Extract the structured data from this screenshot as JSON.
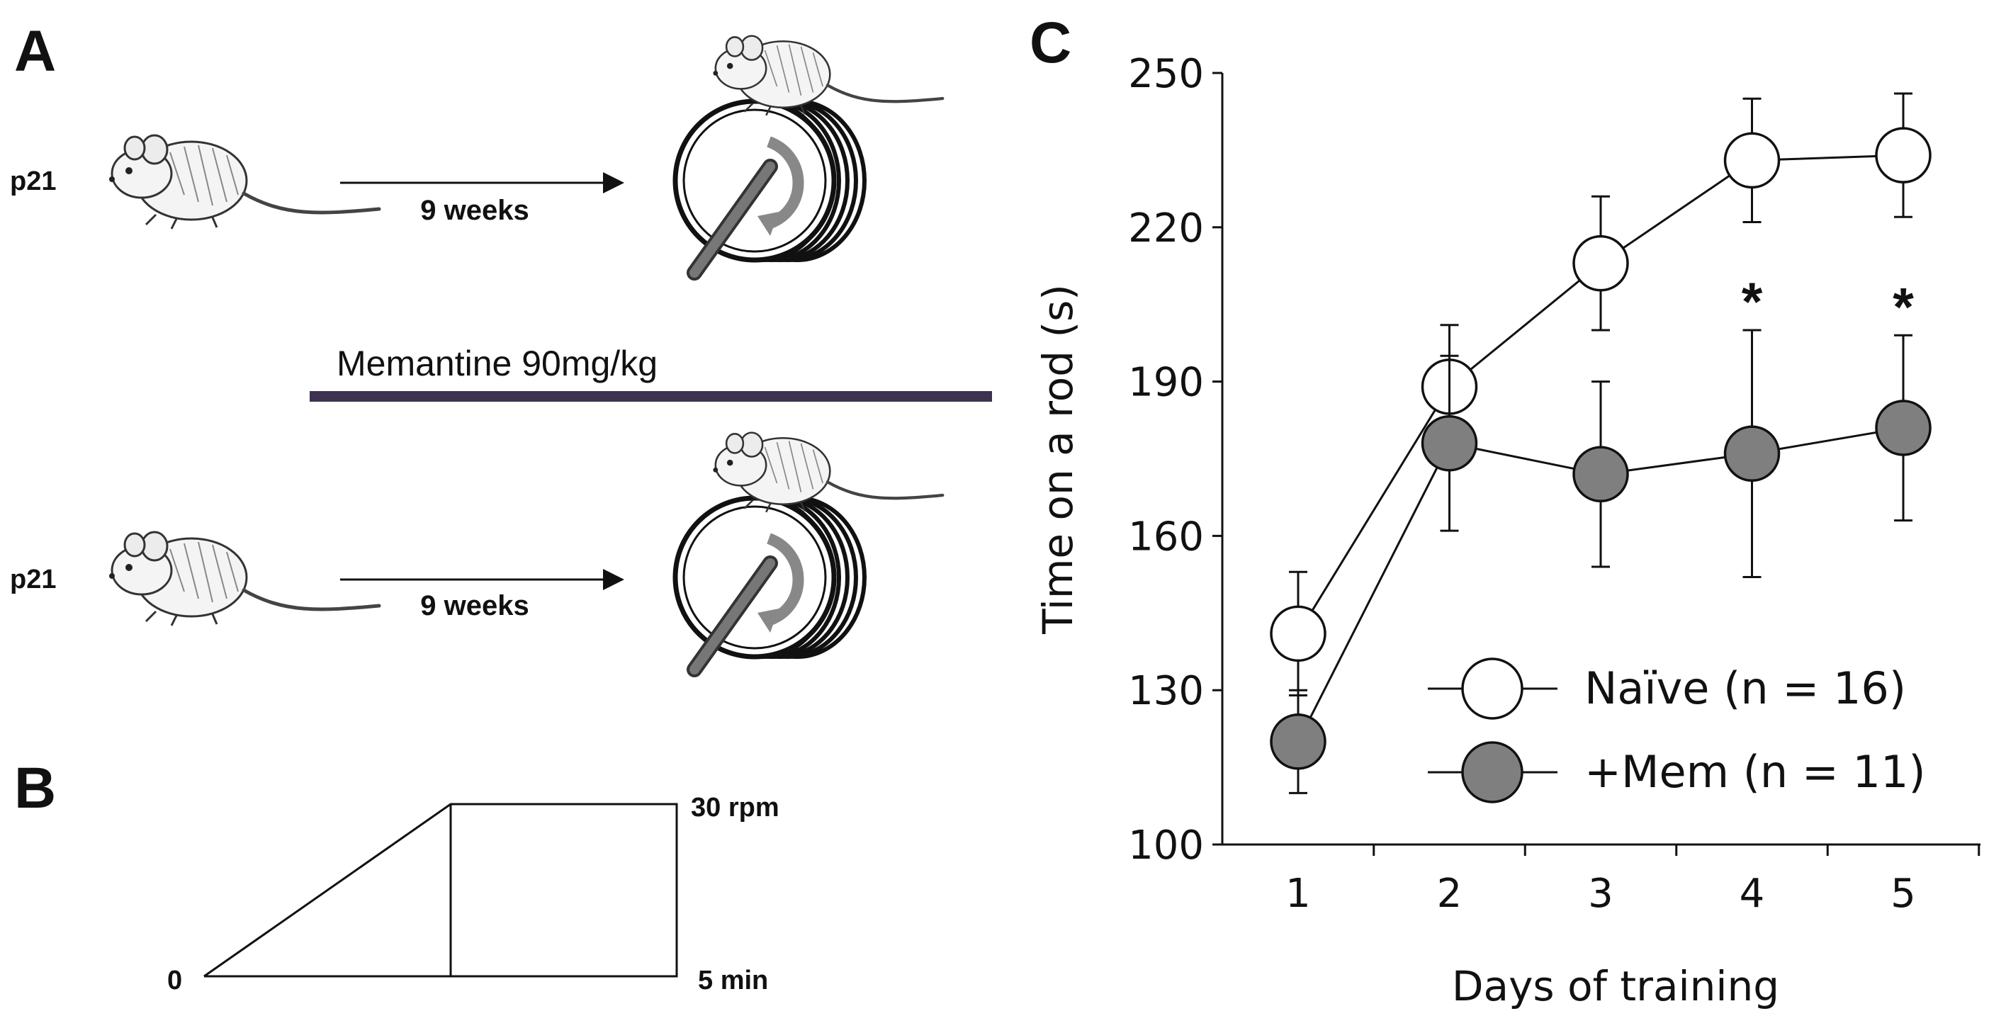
{
  "panels": {
    "a_letter": "A",
    "b_letter": "B",
    "c_letter": "C"
  },
  "protocol": {
    "age_top": "p21",
    "age_bottom": "p21",
    "duration_top": "9 weeks",
    "duration_bottom": "9 weeks",
    "drug": "Memantine 90mg/kg",
    "drug_bar_color": "#3d3350"
  },
  "ramp": {
    "start": "0",
    "top_speed": "30 rpm",
    "end_time": "5 min"
  },
  "chart_data": {
    "type": "line",
    "title": "",
    "xlabel": "Days of training",
    "ylabel": "Time on a rod (s)",
    "x": [
      1,
      2,
      3,
      4,
      5
    ],
    "ylim": [
      100,
      250
    ],
    "yticks": [
      100,
      130,
      160,
      190,
      220,
      250
    ],
    "grid": false,
    "legend_position": "bottom-right",
    "series": [
      {
        "name": "Naïve (n = 16)",
        "values": [
          141,
          189,
          213,
          233,
          234
        ],
        "error": [
          12,
          12,
          13,
          12,
          12
        ],
        "marker_fill": "#ffffff",
        "line_color": "#111111"
      },
      {
        "name": "+Mem (n = 11)",
        "values": [
          120,
          178,
          172,
          176,
          181
        ],
        "error": [
          10,
          17,
          18,
          24,
          18
        ],
        "marker_fill": "#7f7f7f",
        "line_color": "#111111"
      }
    ],
    "annotations": [
      {
        "x": 4,
        "text": "*"
      },
      {
        "x": 5,
        "text": "*"
      }
    ]
  }
}
